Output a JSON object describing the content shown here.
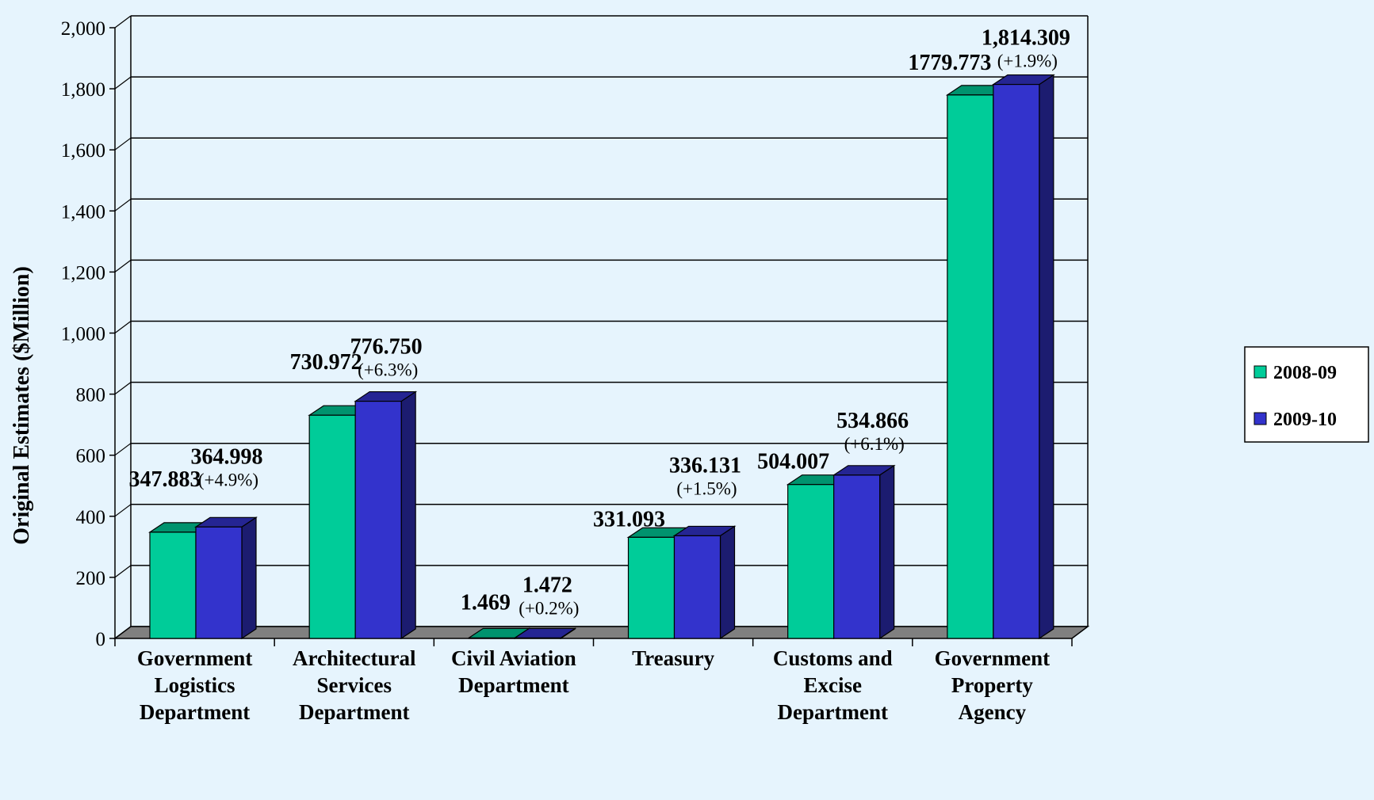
{
  "colors": {
    "series_2008": "#00cc99",
    "series_2009": "#3333cc",
    "background": "#e6f4fd",
    "floor": "#808080"
  },
  "chart_data": {
    "type": "bar",
    "ylabel": "Original Estimates ($Million)",
    "xlabel": "",
    "ylim": [
      0,
      2000
    ],
    "yticks": [
      0,
      200,
      400,
      600,
      800,
      1000,
      1200,
      1400,
      1600,
      1800,
      2000
    ],
    "ytick_labels": [
      "0",
      "200",
      "400",
      "600",
      "800",
      "1,000",
      "1,200",
      "1,400",
      "1,600",
      "1,800",
      "2,000"
    ],
    "grid": true,
    "legend_position": "right",
    "categories": [
      [
        "Government",
        "Logistics",
        "Department"
      ],
      [
        "Architectural",
        "Services",
        "Department"
      ],
      [
        "Civil Aviation",
        "Department"
      ],
      [
        "Treasury"
      ],
      [
        "Customs and",
        "Excise",
        "Department"
      ],
      [
        "Government",
        "Property",
        "Agency"
      ]
    ],
    "series": [
      {
        "name": "2008-09",
        "values": [
          347.883,
          730.972,
          1.469,
          331.093,
          504.007,
          1779.773
        ],
        "labels": [
          "347.883",
          "730.972",
          "1.469",
          "331.093",
          "504.007",
          "1779.773"
        ]
      },
      {
        "name": "2009-10",
        "values": [
          364.998,
          776.75,
          1.472,
          336.131,
          534.866,
          1814.309
        ],
        "labels": [
          "364.998",
          "776.750",
          "1.472",
          "336.131",
          "534.866",
          "1,814.309"
        ],
        "changes": [
          "(+4.9%)",
          "(+6.3%)",
          "(+0.2%)",
          "(+1.5%)",
          "(+6.1%)",
          "(+1.9%)"
        ]
      }
    ]
  }
}
